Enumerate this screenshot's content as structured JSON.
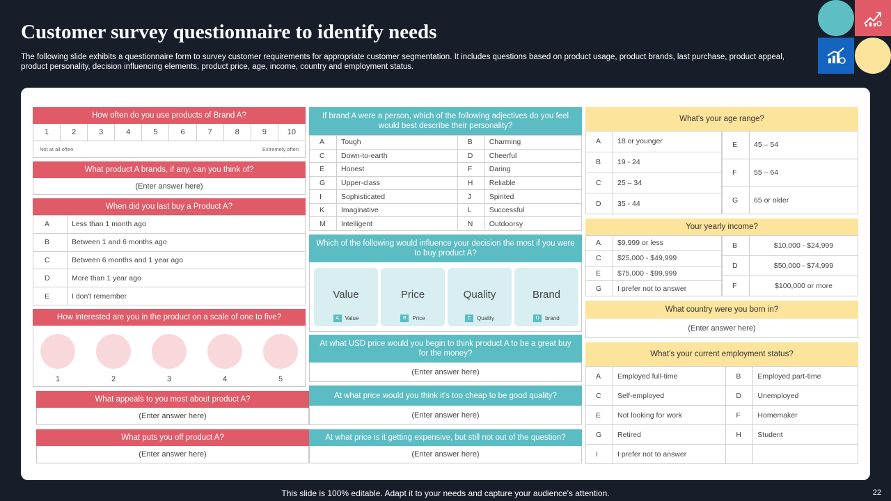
{
  "title": "Customer survey questionnaire to identify needs",
  "subtitle": "The following slide exhibits a questionnaire form to survey customer requirements for appropriate customer segmentation. It includes questions based on product usage, product brands, last purchase, product appeal,  product personality, decision influencing elements, product price, age, income, country and employment status.",
  "footer": "This slide is 100% editable. Adapt it to your needs and capture your audience's attention.",
  "page_number": "22",
  "colors": {
    "red": "#e05a68",
    "teal": "#5bbcc3",
    "yellow": "#fce49c",
    "background": "#171d29"
  },
  "q_frequency": {
    "question": "How often do you use products of Brand A?",
    "scale": [
      "1",
      "2",
      "3",
      "4",
      "5",
      "6",
      "7",
      "8",
      "9",
      "10"
    ],
    "min_label": "Not at all often",
    "max_label": "Extremely often"
  },
  "q_brands": {
    "question": "What product A brands, if any, can you think of?",
    "answer": "(Enter answer here)"
  },
  "q_last_buy": {
    "question": "When did you last buy a Product A?",
    "options": [
      {
        "letter": "A",
        "text": "Less than 1 month ago"
      },
      {
        "letter": "B",
        "text": "Between 1 and 6 months ago"
      },
      {
        "letter": "C",
        "text": "Between 6 months and 1 year ago"
      },
      {
        "letter": "D",
        "text": "More than 1 year ago"
      },
      {
        "letter": "E",
        "text": "I don't remember"
      }
    ]
  },
  "q_interest": {
    "question": "How interested are you in the product on a scale of one to five?",
    "scale": [
      "1",
      "2",
      "3",
      "4",
      "5"
    ]
  },
  "q_appeals": {
    "question": "What appeals to you most about product A?",
    "answer": "(Enter answer here)"
  },
  "q_putsoff": {
    "question": "What puts you off product A?",
    "answer": "(Enter answer here)"
  },
  "q_personality": {
    "question": "If brand A were a person, which of the following adjectives do you feel would best describe their personality?",
    "rows": [
      {
        "l1": "A",
        "t1": "Tough",
        "l2": "B",
        "t2": "Charming"
      },
      {
        "l1": "C",
        "t1": "Down-to-earth",
        "l2": "D",
        "t2": "Cheerful"
      },
      {
        "l1": "E",
        "t1": "Honest",
        "l2": "F",
        "t2": "Daring"
      },
      {
        "l1": "G",
        "t1": "Upper-class",
        "l2": "H",
        "t2": "Reliable"
      },
      {
        "l1": "I",
        "t1": "Sophisticated",
        "l2": "J",
        "t2": "Spirited"
      },
      {
        "l1": "K",
        "t1": "Imaginative",
        "l2": "L",
        "t2": "Successful"
      },
      {
        "l1": "M",
        "t1": "Intelligent",
        "l2": "N",
        "t2": "Outdoorsy"
      }
    ]
  },
  "q_influence": {
    "question": "Which of the following would influence your decision the most if you were to buy product A?",
    "cards": [
      {
        "title": "Value",
        "letter": "A",
        "label": "Value"
      },
      {
        "title": "Price",
        "letter": "B",
        "label": "Price"
      },
      {
        "title": "Quality",
        "letter": "C",
        "label": "Quality"
      },
      {
        "title": "Brand",
        "letter": "D",
        "label": "brand"
      }
    ]
  },
  "q_usd_price": {
    "question": "At what USD price would you  begin to think product A to be a great buy for the money?",
    "answer": "(Enter answer here)"
  },
  "q_too_cheap": {
    "question": "At what price would you think it's too cheap to  be good quality?",
    "answer": "(Enter answer here)"
  },
  "q_expensive": {
    "question": "At what price is it getting expensive, but still not out of the question?",
    "answer": "(Enter answer here)"
  },
  "q_age": {
    "question": "What's your age range?",
    "left": [
      {
        "letter": "A",
        "text": "18 or younger"
      },
      {
        "letter": "B",
        "text": "19 - 24"
      },
      {
        "letter": "C",
        "text": "25 – 34"
      },
      {
        "letter": "D",
        "text": "35 - 44"
      }
    ],
    "right": [
      {
        "letter": "E",
        "text": "45 – 54"
      },
      {
        "letter": "F",
        "text": "55 – 64"
      },
      {
        "letter": "G",
        "text": "65 or older"
      }
    ]
  },
  "q_income": {
    "question": "Your yearly income?",
    "left": [
      {
        "letter": "A",
        "text": "$9,999 or less"
      },
      {
        "letter": "C",
        "text": "$25,000 - $49,999"
      },
      {
        "letter": "E",
        "text": "$75,000 - $99,999"
      },
      {
        "letter": "G",
        "text": "I prefer not to answer"
      }
    ],
    "right": [
      {
        "letter": "B",
        "text": "$10,000 - $24,999"
      },
      {
        "letter": "D",
        "text": "$50,000 - $74,999"
      },
      {
        "letter": "F",
        "text": "$100,000 or more"
      }
    ]
  },
  "q_country": {
    "question": "What country were you born in?",
    "answer": "(Enter answer here)"
  },
  "q_employment": {
    "question": "What's your current employment status?",
    "rows": [
      {
        "l1": "A",
        "t1": "Employed  full-time",
        "l2": "B",
        "t2": "Employed  part-time"
      },
      {
        "l1": "C",
        "t1": "Self-employed",
        "l2": "D",
        "t2": "Unemployed"
      },
      {
        "l1": "E",
        "t1": "Not looking  for work",
        "l2": "F",
        "t2": "Homemaker"
      },
      {
        "l1": "G",
        "t1": "Retired",
        "l2": "H",
        "t2": "Student"
      },
      {
        "l1": "I",
        "t1": "I prefer not to answer",
        "l2": "",
        "t2": ""
      }
    ]
  }
}
